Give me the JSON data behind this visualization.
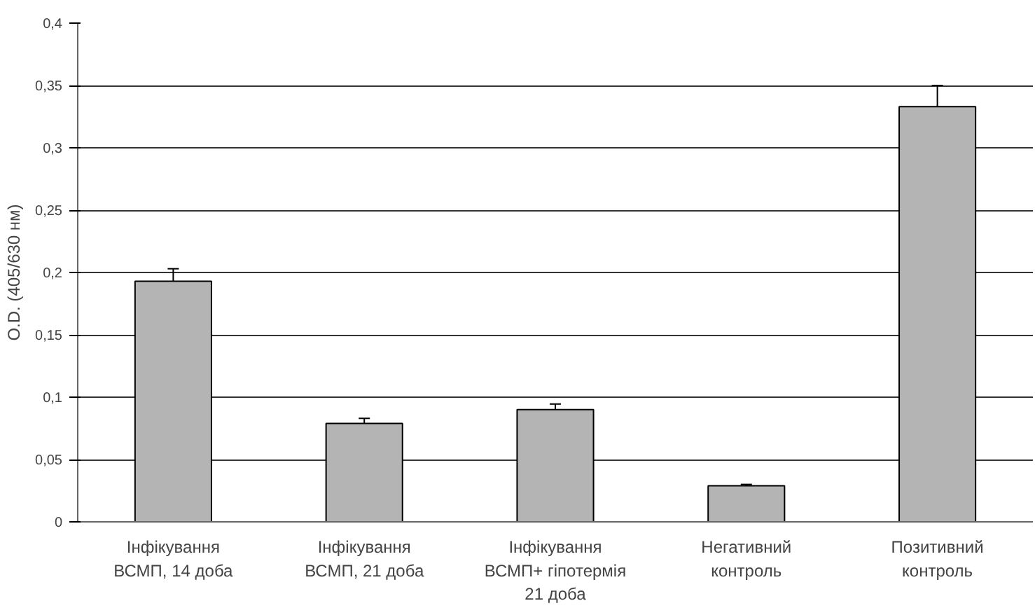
{
  "chart_data": {
    "type": "bar",
    "ylabel": "O.D. (405/630 нм)",
    "categories": [
      "Інфікування ВСМП, 14 доба",
      "Інфікування ВСМП, 21 доба",
      "Інфікування ВСМП+ гіпотермія 21 доба",
      "Негативний контроль",
      "Позитивний контроль"
    ],
    "values": [
      0.193,
      0.079,
      0.09,
      0.029,
      0.333
    ],
    "errors": [
      0.01,
      0.004,
      0.0045,
      0.001,
      0.017
    ],
    "color": "#b4b4b4",
    "ylim": [
      0,
      0.4
    ],
    "yticks": [
      0,
      {
        "value": 0.05,
        "label": "0,05"
      },
      {
        "value": 0.1,
        "label": "0,1"
      },
      {
        "value": 0.15,
        "label": "0,15"
      },
      {
        "value": 0.2,
        "label": "0,2"
      },
      {
        "value": 0.25,
        "label": "0,25"
      },
      {
        "value": 0.3,
        "label": "0,3"
      },
      {
        "value": 0.35,
        "label": "0,35"
      },
      {
        "value": 0.4,
        "label": "0,4"
      }
    ],
    "grid": "y"
  }
}
